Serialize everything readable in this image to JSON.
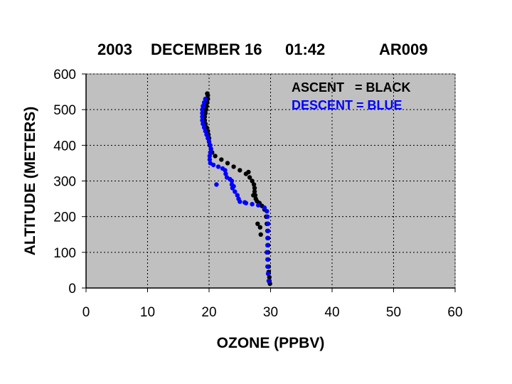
{
  "chart_data": {
    "type": "scatter",
    "title_parts": [
      "2003",
      "DECEMBER 16",
      "01:42",
      "AR009"
    ],
    "xlabel": "OZONE (PPBV)",
    "ylabel": "ALTITUDE (METERS)",
    "xlim": [
      0,
      60
    ],
    "ylim": [
      0,
      600
    ],
    "x_ticks": [
      "0",
      "10",
      "20",
      "30",
      "40",
      "50",
      "60"
    ],
    "y_ticks": [
      "0",
      "100",
      "200",
      "300",
      "400",
      "500",
      "600"
    ],
    "grid": true,
    "plot_background": "#c0c0c0",
    "legend": [
      {
        "text": "ASCENT   = BLACK",
        "color": "#000000"
      },
      {
        "text": "DESCENT = BLUE",
        "color": "#0000ff"
      }
    ],
    "series": [
      {
        "name": "ASCENT",
        "color": "#000000",
        "points": [
          [
            29.9,
            12
          ],
          [
            29.8,
            20
          ],
          [
            29.8,
            30
          ],
          [
            29.7,
            45
          ],
          [
            29.7,
            60
          ],
          [
            29.6,
            80
          ],
          [
            29.6,
            100
          ],
          [
            29.6,
            120
          ],
          [
            29.6,
            140
          ],
          [
            29.5,
            160
          ],
          [
            29.4,
            180
          ],
          [
            29.3,
            200
          ],
          [
            29.0,
            220
          ],
          [
            28.6,
            230
          ],
          [
            28.2,
            238
          ],
          [
            27.8,
            243
          ],
          [
            27.6,
            250
          ],
          [
            27.5,
            260
          ],
          [
            27.4,
            270
          ],
          [
            27.4,
            280
          ],
          [
            27.3,
            290
          ],
          [
            27.0,
            300
          ],
          [
            26.6,
            310
          ],
          [
            26.0,
            320
          ],
          [
            25.0,
            330
          ],
          [
            24.0,
            340
          ],
          [
            23.0,
            350
          ],
          [
            22.0,
            360
          ],
          [
            21.0,
            370
          ],
          [
            20.5,
            380
          ],
          [
            20.3,
            390
          ],
          [
            20.1,
            400
          ],
          [
            20.0,
            410
          ],
          [
            20.0,
            420
          ],
          [
            19.9,
            430
          ],
          [
            19.8,
            440
          ],
          [
            19.6,
            450
          ],
          [
            19.4,
            460
          ],
          [
            19.3,
            470
          ],
          [
            19.3,
            480
          ],
          [
            19.4,
            490
          ],
          [
            19.5,
            500
          ],
          [
            19.6,
            510
          ],
          [
            19.7,
            520
          ],
          [
            19.8,
            530
          ],
          [
            19.8,
            540
          ],
          [
            19.7,
            545
          ],
          [
            28.3,
            170
          ],
          [
            28.4,
            150
          ],
          [
            27.9,
            180
          ],
          [
            27.2,
            260
          ],
          [
            26.4,
            325
          ]
        ]
      },
      {
        "name": "DESCENT",
        "color": "#0000ff",
        "points": [
          [
            29.7,
            20
          ],
          [
            29.6,
            40
          ],
          [
            29.5,
            60
          ],
          [
            29.5,
            80
          ],
          [
            29.4,
            100
          ],
          [
            29.5,
            120
          ],
          [
            29.5,
            140
          ],
          [
            29.6,
            160
          ],
          [
            29.6,
            180
          ],
          [
            29.5,
            200
          ],
          [
            29.4,
            215
          ],
          [
            29.0,
            225
          ],
          [
            28.0,
            232
          ],
          [
            27.0,
            235
          ],
          [
            26.0,
            238
          ],
          [
            25.0,
            242
          ],
          [
            24.8,
            250
          ],
          [
            24.6,
            260
          ],
          [
            24.2,
            270
          ],
          [
            23.8,
            280
          ],
          [
            23.7,
            290
          ],
          [
            23.7,
            300
          ],
          [
            23.4,
            305
          ],
          [
            22.9,
            310
          ],
          [
            22.7,
            320
          ],
          [
            22.6,
            330
          ],
          [
            22.2,
            335
          ],
          [
            21.5,
            340
          ],
          [
            20.7,
            345
          ],
          [
            20.2,
            350
          ],
          [
            20.1,
            360
          ],
          [
            20.1,
            370
          ],
          [
            20.2,
            380
          ],
          [
            20.3,
            390
          ],
          [
            20.2,
            400
          ],
          [
            20.0,
            410
          ],
          [
            19.8,
            420
          ],
          [
            19.6,
            430
          ],
          [
            19.4,
            440
          ],
          [
            19.2,
            450
          ],
          [
            19.0,
            460
          ],
          [
            18.9,
            470
          ],
          [
            18.9,
            480
          ],
          [
            18.9,
            490
          ],
          [
            18.9,
            500
          ],
          [
            19.0,
            510
          ],
          [
            19.2,
            520
          ],
          [
            19.4,
            530
          ],
          [
            21.2,
            290
          ],
          [
            24.0,
            285
          ],
          [
            25.8,
            240
          ]
        ]
      }
    ]
  }
}
